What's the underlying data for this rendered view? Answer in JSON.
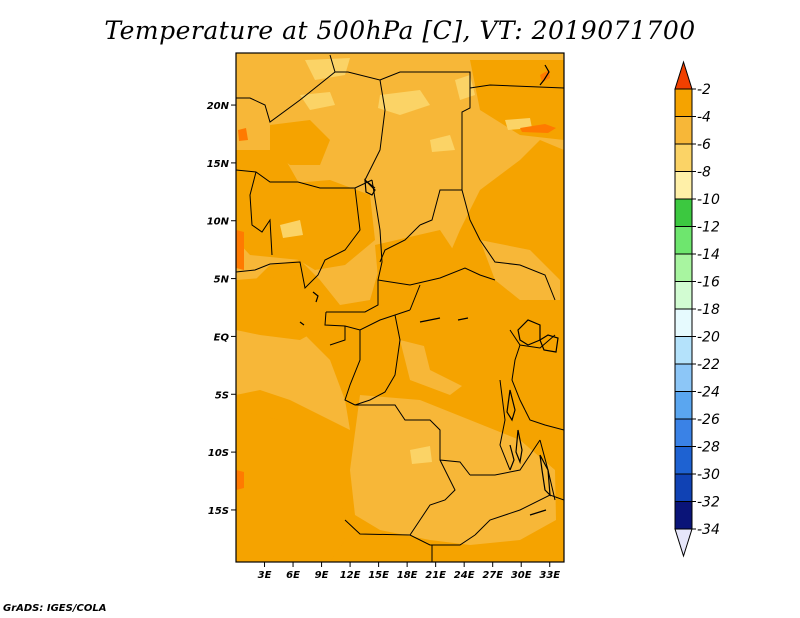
{
  "title": "Temperature at 500hPa [C], VT: 2019071700",
  "footer": "GrADS: IGES/COLA",
  "map": {
    "lon_range": [
      0,
      34.5
    ],
    "lat_range": [
      -19.5,
      24.5
    ],
    "x_ticks": [
      {
        "value": 3,
        "label": "3E"
      },
      {
        "value": 6,
        "label": "6E"
      },
      {
        "value": 9,
        "label": "9E"
      },
      {
        "value": 12,
        "label": "12E"
      },
      {
        "value": 15,
        "label": "15E"
      },
      {
        "value": 18,
        "label": "18E"
      },
      {
        "value": 21,
        "label": "21E"
      },
      {
        "value": 24,
        "label": "24E"
      },
      {
        "value": 27,
        "label": "27E"
      },
      {
        "value": 30,
        "label": "30E"
      },
      {
        "value": 33,
        "label": "33E"
      }
    ],
    "y_ticks": [
      {
        "value": 20,
        "label": "20N"
      },
      {
        "value": 15,
        "label": "15N"
      },
      {
        "value": 10,
        "label": "10N"
      },
      {
        "value": 5,
        "label": "5N"
      },
      {
        "value": 0,
        "label": "EQ"
      },
      {
        "value": -5,
        "label": "5S"
      },
      {
        "value": -10,
        "label": "10S"
      },
      {
        "value": -15,
        "label": "15S"
      }
    ],
    "base_color": "#f5a300"
  },
  "colorbar": {
    "levels": [
      {
        "label": "-2",
        "color": "#ff7a00"
      },
      {
        "label": "-4",
        "color": "#f5a300"
      },
      {
        "label": "-6",
        "color": "#f7b738"
      },
      {
        "label": "-8",
        "color": "#fbd366"
      },
      {
        "label": "-10",
        "color": "#fff0a8"
      },
      {
        "label": "-12",
        "color": "#3cc840"
      },
      {
        "label": "-14",
        "color": "#6ee66e"
      },
      {
        "label": "-16",
        "color": "#a8f5a0"
      },
      {
        "label": "-18",
        "color": "#d2fcd2"
      },
      {
        "label": "-20",
        "color": "#e6fafe"
      },
      {
        "label": "-22",
        "color": "#b4e2fb"
      },
      {
        "label": "-24",
        "color": "#8cc6f7"
      },
      {
        "label": "-26",
        "color": "#5aa6f0"
      },
      {
        "label": "-28",
        "color": "#3a82e6"
      },
      {
        "label": "-30",
        "color": "#1e62d2"
      },
      {
        "label": "-32",
        "color": "#1042b4"
      },
      {
        "label": "-34",
        "color": "#0a1478"
      }
    ],
    "top_arrow_color": "#f04000",
    "bottom_arrow_color": "#e6e6fa"
  }
}
